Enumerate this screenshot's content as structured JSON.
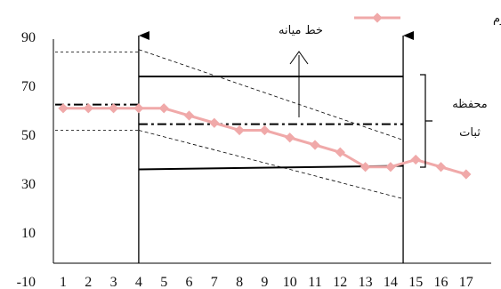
{
  "chart_data": {
    "type": "line",
    "title": "",
    "xlabel": "",
    "ylabel": "",
    "categories": [
      "1",
      "2",
      "3",
      "4",
      "5",
      "6",
      "7",
      "8",
      "9",
      "10",
      "11",
      "12",
      "13",
      "14",
      "15",
      "16",
      "17"
    ],
    "series": [
      {
        "name": "شرکت‌کننده سوم",
        "color": "#f0a9a9",
        "values": [
          61,
          61,
          61,
          61,
          61,
          58,
          55,
          52,
          52,
          49,
          46,
          43,
          37,
          37,
          40,
          37,
          34
        ]
      }
    ],
    "y_ticks": [
      "-10",
      "10",
      "30",
      "50",
      "70",
      "90"
    ],
    "ylim": [
      -10,
      90
    ],
    "legend_position": "top-right",
    "grid": false,
    "annotations": {
      "midline_label": "خط میانه",
      "stability_envelope_label_line1": "محفظه",
      "stability_envelope_label_line2": "ثبات",
      "phase_lines_x": [
        4,
        14.5
      ],
      "baseline_median": 62.5,
      "baseline_envelope": [
        84,
        52
      ],
      "treatment_median": 54.5,
      "treatment_envelope_upper": 74,
      "treatment_envelope_lower": 36,
      "trend_upper": [
        [
          4,
          85
        ],
        [
          14.5,
          48
        ]
      ],
      "trend_lower": [
        [
          4,
          52
        ],
        [
          14.5,
          24
        ]
      ]
    }
  }
}
